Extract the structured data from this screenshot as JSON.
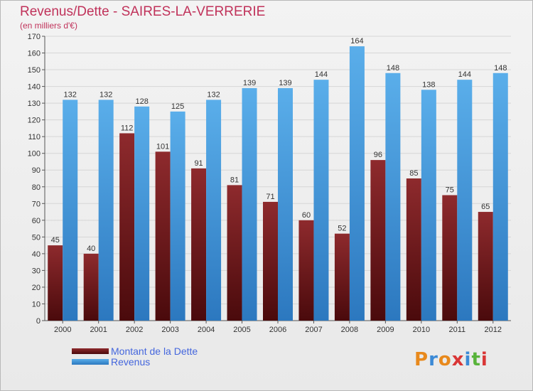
{
  "title": "Revenus/Dette - SAIRES-LA-VERRERIE",
  "subtitle": "(en milliers d'€)",
  "legend": {
    "debt_label": "Montant de la Dette",
    "revenue_label": "Revenus"
  },
  "logo_text": "Proxiti",
  "colors": {
    "debt": "#7a1f22",
    "revenue": "#4fa3e6",
    "title": "#c0325a",
    "legend_text": "#4466dd"
  },
  "chart_data": {
    "type": "bar",
    "title": "Revenus/Dette - SAIRES-LA-VERRERIE",
    "ylabel": "(en milliers d'€)",
    "categories": [
      "2000",
      "2001",
      "2002",
      "2003",
      "2004",
      "2005",
      "2006",
      "2007",
      "2008",
      "2009",
      "2010",
      "2011",
      "2012"
    ],
    "series": [
      {
        "name": "Montant de la Dette",
        "values": [
          45,
          40,
          112,
          101,
          91,
          81,
          71,
          60,
          52,
          96,
          85,
          75,
          65
        ]
      },
      {
        "name": "Revenus",
        "values": [
          132,
          132,
          128,
          125,
          132,
          139,
          139,
          144,
          164,
          148,
          138,
          144,
          148
        ]
      }
    ],
    "ylim": [
      0,
      170
    ],
    "yticks": [
      0,
      10,
      20,
      30,
      40,
      50,
      60,
      70,
      80,
      90,
      100,
      110,
      120,
      130,
      140,
      150,
      160,
      170
    ],
    "grid": true,
    "legend_position": "bottom-left"
  }
}
